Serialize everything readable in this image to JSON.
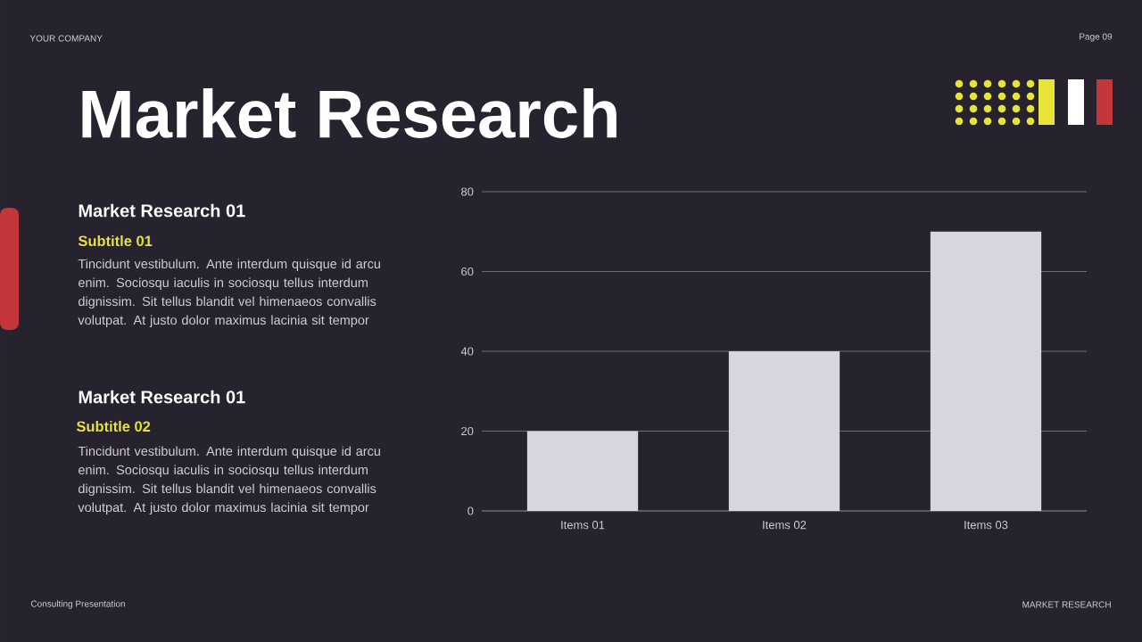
{
  "chart_data": {
    "type": "bar",
    "title": "Market Research",
    "categories": [
      "Items 01",
      "Items 02",
      "Items 03"
    ],
    "values": [
      20,
      40,
      70
    ],
    "color": "#d8d5e1",
    "ylim": [
      0,
      80
    ],
    "yticks": [
      0,
      20,
      40,
      60,
      80
    ],
    "grid": "y",
    "annotations": [
      "YOUR COMPANY",
      "Page 09",
      "Market Research 01",
      "Subtitle 01",
      "Tincidunt vestibulum. Ante interdum quisque id arcu enim. Sociosqu iaculis in sociosqu tellus interdum dignissim. Sit tellus blandit vel himenaeos convallis volutpat. At justo dolor maximus lacinia sit tempor",
      "Market Research 01",
      "Subtitle 02",
      "Tincidunt vestibulum. Ante interdum quisque id arcu enim. Sociosqu iaculis in sociosqu tellus interdum dignissim. Sit tellus blandit vel himenaeos convallis volutpat. At justo dolor maximus lacinia sit tempor",
      "Consulting Presentation",
      "MARKET RESEARCH"
    ]
  }
}
